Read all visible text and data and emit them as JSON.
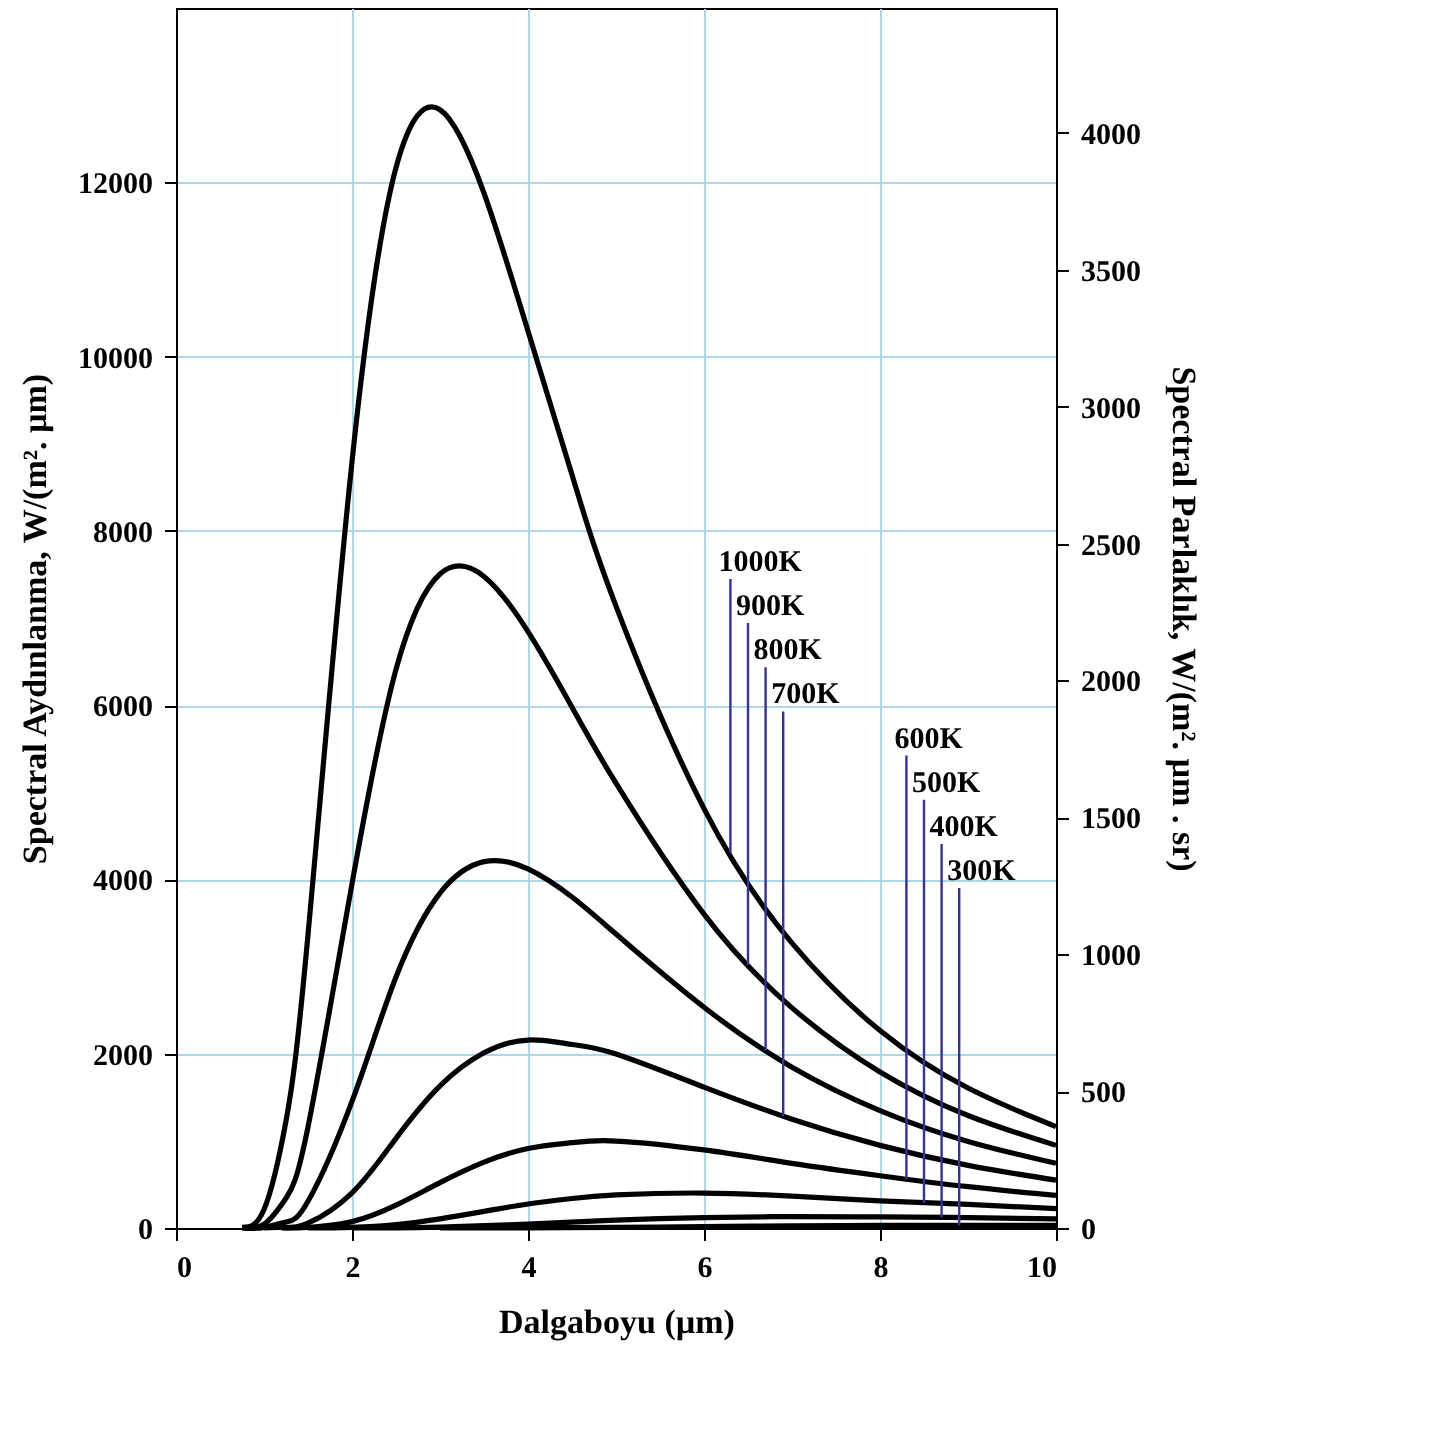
{
  "chart_data": {
    "type": "line",
    "xlabel": "Dalgaboyu (µm)",
    "ylabel": "Spectral Aydınlanma,  W/(m². µm)",
    "y2label": "Spectral Parlaklık,  W/(m². µm . sr)",
    "xlim": [
      0,
      10
    ],
    "xticks": [
      0,
      2,
      4,
      6,
      8,
      10
    ],
    "ylim": [
      0,
      14000
    ],
    "yticks": [
      0,
      2000,
      4000,
      6000,
      8000,
      10000,
      12000
    ],
    "y2lim": [
      0,
      4456
    ],
    "y2ticks": [
      0,
      500,
      1000,
      1500,
      2000,
      2500,
      3000,
      3500,
      4000
    ],
    "grid": true,
    "line_style": "solid",
    "series": [
      {
        "color": "#000000",
        "x": [
          0.75,
          1,
          1.25,
          1.5,
          2,
          2.5,
          3,
          3.5,
          4,
          4.5,
          5,
          6,
          7,
          8,
          9,
          10
        ],
        "values": [
          7,
          211,
          1228,
          3366,
          8793,
          12169,
          12833,
          11875,
          10293,
          8644,
          7136,
          4812,
          3269,
          2266,
          1606,
          1164
        ]
      },
      {
        "color": "#000000",
        "x": [
          0.75,
          1,
          1.25,
          1.5,
          2,
          2.5,
          3,
          3.5,
          4,
          4.5,
          5,
          6,
          7,
          8,
          9,
          10
        ],
        "values": [
          1,
          43,
          342,
          1159,
          3949,
          6410,
          7505,
          7477,
          6843,
          5976,
          5104,
          3602,
          2526,
          1791,
          1291,
          948
        ]
      },
      {
        "color": "#000000",
        "x": [
          0.85,
          1,
          1.25,
          1.5,
          2,
          2.5,
          3,
          3.5,
          4,
          4.5,
          5,
          6,
          7,
          8,
          9,
          10
        ],
        "values": [
          0,
          6,
          69,
          306,
          1453,
          2881,
          3844,
          4204,
          4120,
          3798,
          3373,
          2533,
          1846,
          1348,
          994,
          742
        ]
      },
      {
        "color": "#000000",
        "x": [
          1,
          1.25,
          1.5,
          2,
          2.5,
          3,
          3.5,
          4,
          4.5,
          5,
          6,
          7,
          8,
          9,
          10
        ],
        "values": [
          0,
          9,
          55,
          402,
          1029,
          1631,
          2011,
          2157,
          2106,
          1996,
          1617,
          1248,
          948,
          719,
          549
        ]
      },
      {
        "color": "#000000",
        "x": [
          1.2,
          1.5,
          2,
          2.5,
          3,
          3.5,
          4,
          4.5,
          5,
          6,
          7,
          8,
          9,
          10
        ],
        "values": [
          0,
          6,
          73,
          262,
          520,
          755,
          912,
          979,
          998,
          896,
          742,
          600,
          474,
          374
        ]
      },
      {
        "color": "#000000",
        "x": [
          1.5,
          2,
          2.5,
          3,
          3.5,
          4,
          4.5,
          5,
          6,
          7,
          8,
          9,
          10
        ],
        "values": [
          0,
          7,
          38,
          105,
          191,
          275,
          339,
          380,
          401,
          365,
          312,
          270,
          223
        ]
      },
      {
        "color": "#000000",
        "x": [
          2,
          2.5,
          3,
          4,
          5,
          6,
          7,
          8,
          9,
          10
        ],
        "values": [
          0,
          2,
          10,
          45,
          90,
          120,
          131,
          127,
          119,
          105
        ]
      },
      {
        "color": "#000000",
        "x": [
          3,
          4,
          5,
          6,
          7,
          8,
          9,
          10
        ],
        "values": [
          0,
          2,
          8,
          16,
          24,
          29,
          31,
          31
        ]
      }
    ],
    "annotations": [
      {
        "text": "1000K",
        "x": 6.3,
        "y": 4300
      },
      {
        "text": "900K",
        "x": 6.5,
        "y": 3020
      },
      {
        "text": "800K",
        "x": 6.7,
        "y": 2040
      },
      {
        "text": "700K",
        "x": 6.9,
        "y": 1280
      },
      {
        "text": "600K",
        "x": 8.3,
        "y": 560
      },
      {
        "text": "500K",
        "x": 8.5,
        "y": 290
      },
      {
        "text": "400K",
        "x": 8.7,
        "y": 121
      },
      {
        "text": "300K",
        "x": 8.9,
        "y": 31
      }
    ]
  }
}
